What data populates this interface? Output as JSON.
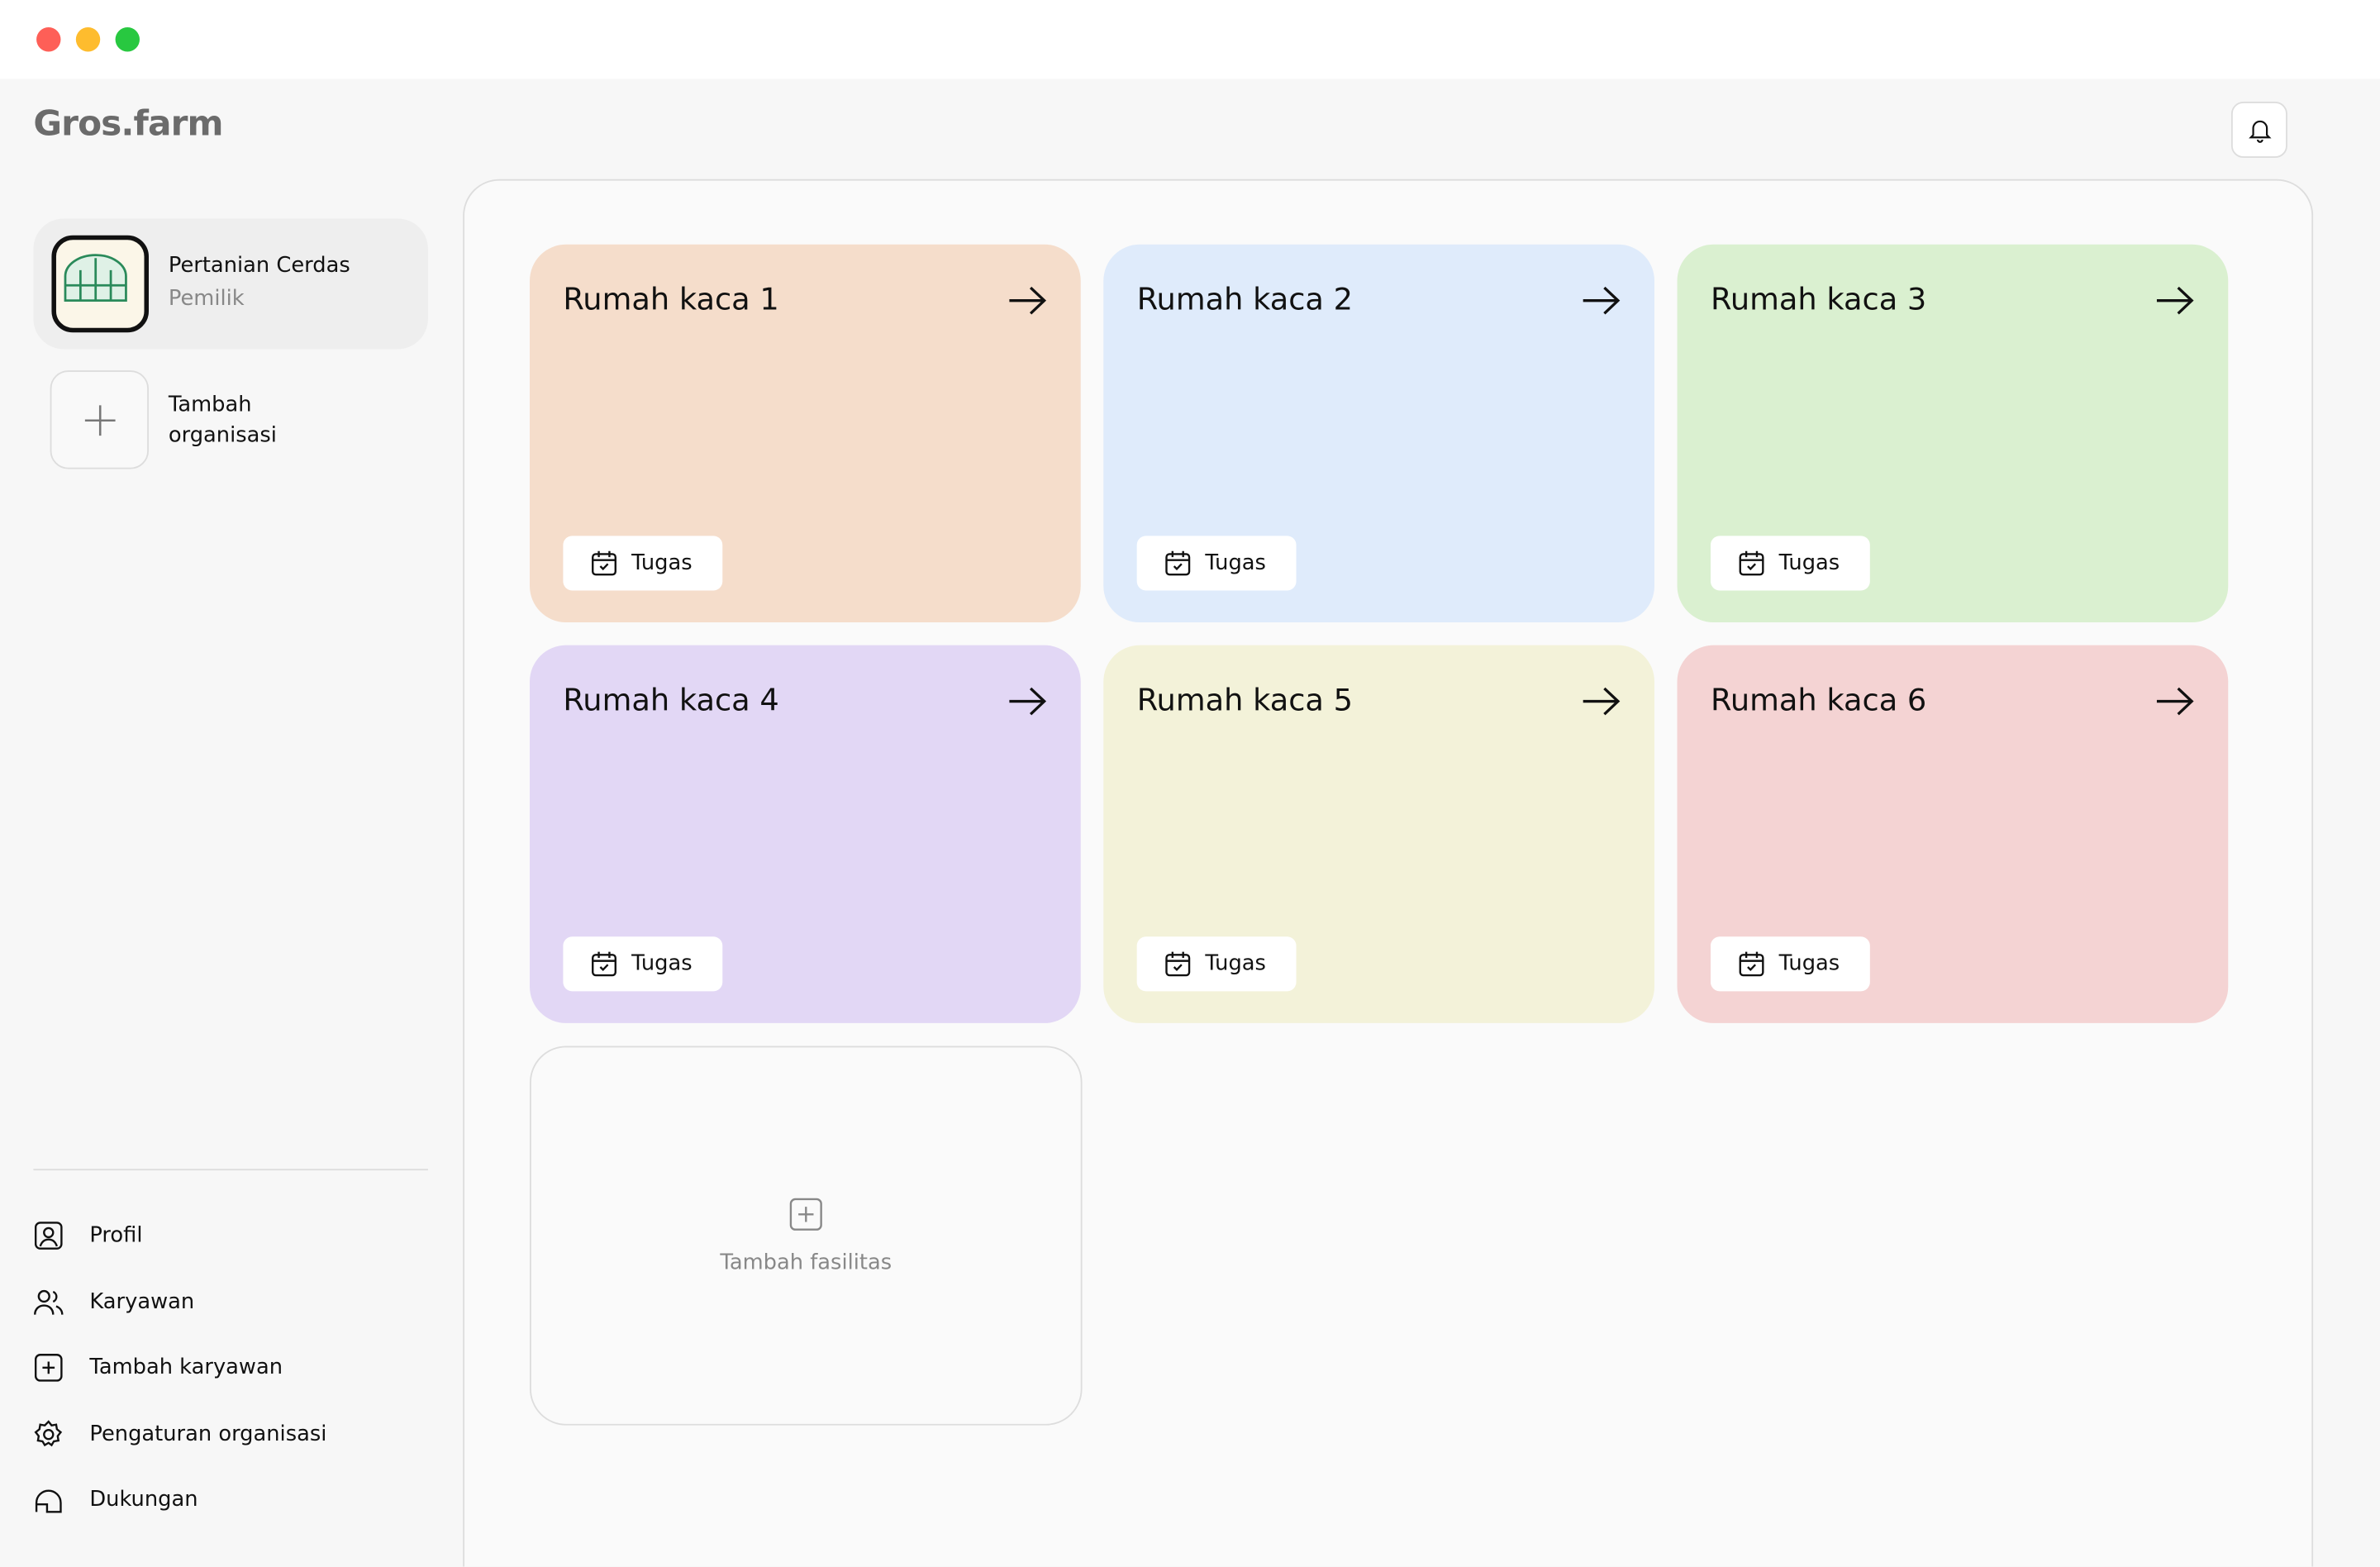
{
  "header": {
    "logo": "Gros.farm"
  },
  "sidebar": {
    "organization": {
      "name": "Pertanian Cerdas",
      "role": "Pemilik"
    },
    "add_organization": "Tambah organisasi",
    "menu": [
      "Profil",
      "Karyawan",
      "Tambah karyawan",
      "Pengaturan organisasi",
      "Dukungan"
    ]
  },
  "facilities": [
    {
      "name": "Rumah kaca 1",
      "task": "Tugas"
    },
    {
      "name": "Rumah kaca 2",
      "task": "Tugas"
    },
    {
      "name": "Rumah kaca 3",
      "task": "Tugas"
    },
    {
      "name": "Rumah kaca 4",
      "task": "Tugas"
    },
    {
      "name": "Rumah kaca 5",
      "task": "Tugas"
    },
    {
      "name": "Rumah kaca 6",
      "task": "Tugas"
    }
  ],
  "add_facility": "Tambah fasilitas"
}
